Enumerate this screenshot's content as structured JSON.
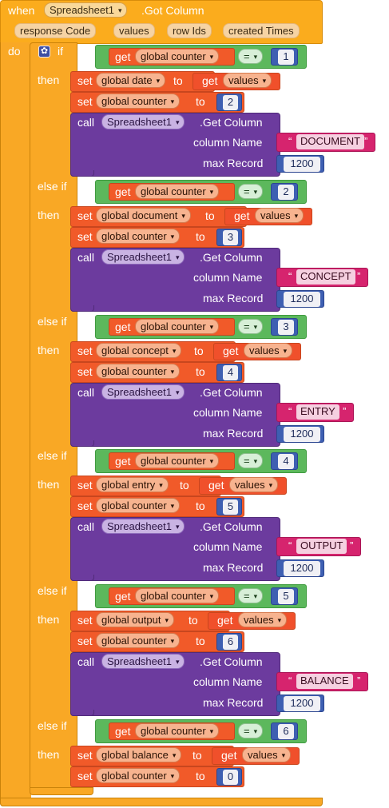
{
  "event": {
    "when": "when",
    "component": "Spreadsheet1",
    "event_name": ".Got Column",
    "do": "do"
  },
  "params": [
    "response Code",
    "values",
    "row Ids",
    "created Times"
  ],
  "ctl": {
    "if": "if",
    "elseif": "else if",
    "then": "then"
  },
  "kw": {
    "get": "get",
    "set": "set",
    "to": "to",
    "call": "call",
    "column_name": "column Name",
    "max_record": "max Record"
  },
  "compare_op": "=",
  "counter_var": "global counter",
  "values_param": "values",
  "call_method": ".Get Column",
  "max_record_value": "1200",
  "branches": [
    {
      "cond": "1",
      "target": "global date",
      "next": "2",
      "column": "DOCUMENT"
    },
    {
      "cond": "2",
      "target": "global document",
      "next": "3",
      "column": "CONCEPT"
    },
    {
      "cond": "3",
      "target": "global concept",
      "next": "4",
      "column": "ENTRY"
    },
    {
      "cond": "4",
      "target": "global entry",
      "next": "5",
      "column": "OUTPUT"
    },
    {
      "cond": "5",
      "target": "global output",
      "next": "6",
      "column": "BALANCE"
    },
    {
      "cond": "6",
      "target": "global balance",
      "next": "0"
    }
  ],
  "colors": {
    "event": "#fbac1d",
    "control": "#f9a825",
    "logic_compare": "#5cb85c",
    "variable": "#f15a29",
    "number": "#3e5fb2",
    "component_call": "#6c3b9e",
    "text": "#d6246e"
  },
  "icons": {
    "dropdown": "dropdown-arrow-icon",
    "mutator": "gear-icon",
    "quote": "quote-icon"
  }
}
